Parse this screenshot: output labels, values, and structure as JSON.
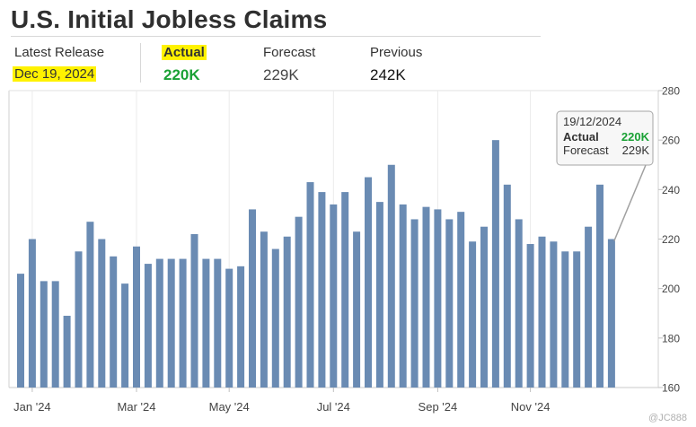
{
  "header": {
    "title": "U.S. Initial Jobless Claims"
  },
  "release": {
    "latest_label": "Latest Release",
    "latest_date": "Dec 19, 2024",
    "actual_label": "Actual",
    "actual_value": "220K",
    "forecast_label": "Forecast",
    "forecast_value": "229K",
    "previous_label": "Previous",
    "previous_value": "242K"
  },
  "tooltip": {
    "date": "19/12/2024",
    "actual_label": "Actual",
    "actual_value": "220K",
    "forecast_label": "Forecast",
    "forecast_value": "229K"
  },
  "colors": {
    "bar": "#6a8bb3",
    "actual_green": "#1aa135",
    "highlight": "#fff200"
  },
  "watermark": "@JC888",
  "chart_data": {
    "type": "bar",
    "ylim": [
      160,
      280
    ],
    "yticks": [
      160,
      180,
      200,
      220,
      240,
      260,
      280
    ],
    "y_axis_side": "right",
    "grid": "vertical",
    "xtick_labels": [
      "Jan '24",
      "Mar '24",
      "May '24",
      "Jul '24",
      "Sep '24",
      "Nov '24"
    ],
    "xtick_bar_index": [
      1,
      10,
      18,
      27,
      36,
      44
    ],
    "values": [
      206,
      220,
      203,
      203,
      189,
      215,
      227,
      220,
      213,
      202,
      217,
      210,
      212,
      212,
      212,
      222,
      212,
      212,
      208,
      209,
      232,
      223,
      216,
      221,
      229,
      243,
      239,
      234,
      239,
      223,
      245,
      235,
      250,
      234,
      228,
      233,
      232,
      228,
      231,
      219,
      225,
      260,
      242,
      228,
      218,
      221,
      219,
      215,
      215,
      225,
      242,
      220
    ],
    "highlighted_index": 51
  }
}
